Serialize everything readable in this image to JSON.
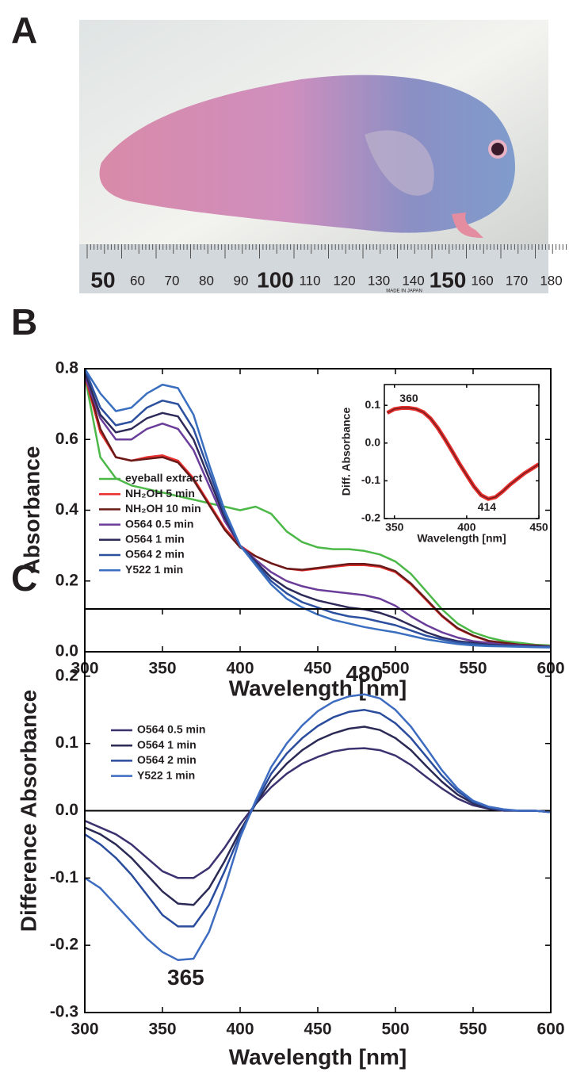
{
  "panel_labels": [
    "A",
    "B",
    "C"
  ],
  "photo": {
    "ruler_labels": [
      "50",
      "60",
      "70",
      "80",
      "90",
      "100",
      "110",
      "120",
      "130",
      "140",
      "150",
      "160",
      "170",
      "180"
    ],
    "ruler_note": "MADE IN JAPAN"
  },
  "chart_data": [
    {
      "type": "line",
      "x_label": "Wavelength [nm]",
      "y_label": "Absorbance",
      "x": [
        300,
        310,
        320,
        330,
        340,
        350,
        360,
        370,
        380,
        390,
        400,
        410,
        420,
        430,
        440,
        450,
        460,
        470,
        480,
        490,
        500,
        510,
        520,
        530,
        540,
        550,
        560,
        570,
        580,
        590,
        600
      ],
      "xlim": [
        300,
        600
      ],
      "xticks": [
        300,
        350,
        400,
        450,
        500,
        550,
        600
      ],
      "ylim": [
        0,
        0.8
      ],
      "yticks": [
        {
          "value": 0,
          "label": "0.0"
        },
        0.2,
        0.4,
        0.6,
        0.8
      ],
      "legend": "lower left",
      "series": [
        {
          "name": "eyeball extract",
          "color": "#4cb848",
          "values": [
            0.78,
            0.55,
            0.49,
            0.47,
            0.46,
            0.45,
            0.44,
            0.43,
            0.42,
            0.41,
            0.4,
            0.41,
            0.39,
            0.34,
            0.31,
            0.295,
            0.29,
            0.29,
            0.285,
            0.275,
            0.255,
            0.22,
            0.17,
            0.12,
            0.08,
            0.055,
            0.04,
            0.03,
            0.025,
            0.02,
            0.018
          ]
        },
        {
          "name": "NH₂OH 5 min",
          "color": "#e8312f",
          "values": [
            0.78,
            0.62,
            0.55,
            0.54,
            0.55,
            0.555,
            0.54,
            0.49,
            0.42,
            0.35,
            0.3,
            0.27,
            0.25,
            0.235,
            0.23,
            0.235,
            0.24,
            0.245,
            0.245,
            0.24,
            0.225,
            0.19,
            0.145,
            0.1,
            0.065,
            0.045,
            0.03,
            0.025,
            0.02,
            0.018,
            0.015
          ]
        },
        {
          "name": "NH₂OH 10 min",
          "color": "#6b1a1a",
          "values": [
            0.79,
            0.63,
            0.55,
            0.54,
            0.545,
            0.55,
            0.535,
            0.485,
            0.415,
            0.345,
            0.295,
            0.27,
            0.25,
            0.235,
            0.232,
            0.237,
            0.243,
            0.248,
            0.248,
            0.243,
            0.228,
            0.193,
            0.148,
            0.102,
            0.067,
            0.046,
            0.031,
            0.025,
            0.02,
            0.018,
            0.015
          ]
        },
        {
          "name": "O564 0.5 min",
          "color": "#6a3d9a",
          "values": [
            0.78,
            0.66,
            0.6,
            0.6,
            0.63,
            0.645,
            0.63,
            0.57,
            0.47,
            0.37,
            0.3,
            0.26,
            0.225,
            0.2,
            0.185,
            0.175,
            0.17,
            0.165,
            0.16,
            0.15,
            0.13,
            0.1,
            0.075,
            0.055,
            0.04,
            0.03,
            0.025,
            0.02,
            0.018,
            0.016,
            0.015
          ]
        },
        {
          "name": "O564 1 min",
          "color": "#2e2a5a",
          "values": [
            0.79,
            0.67,
            0.62,
            0.63,
            0.66,
            0.675,
            0.665,
            0.6,
            0.49,
            0.38,
            0.3,
            0.255,
            0.21,
            0.18,
            0.16,
            0.145,
            0.135,
            0.125,
            0.12,
            0.11,
            0.095,
            0.075,
            0.055,
            0.04,
            0.03,
            0.025,
            0.02,
            0.018,
            0.016,
            0.015,
            0.014
          ]
        },
        {
          "name": "O564 2 min",
          "color": "#2c4f9e",
          "values": [
            0.8,
            0.69,
            0.64,
            0.65,
            0.69,
            0.71,
            0.7,
            0.63,
            0.51,
            0.39,
            0.3,
            0.25,
            0.2,
            0.165,
            0.14,
            0.125,
            0.11,
            0.1,
            0.095,
            0.085,
            0.075,
            0.06,
            0.045,
            0.035,
            0.027,
            0.022,
            0.018,
            0.016,
            0.015,
            0.014,
            0.013
          ]
        },
        {
          "name": "Y522 1 min",
          "color": "#3a6fc0",
          "values": [
            0.8,
            0.73,
            0.68,
            0.69,
            0.73,
            0.755,
            0.745,
            0.67,
            0.53,
            0.4,
            0.3,
            0.245,
            0.19,
            0.15,
            0.125,
            0.105,
            0.09,
            0.08,
            0.07,
            0.062,
            0.055,
            0.045,
            0.035,
            0.028,
            0.022,
            0.018,
            0.016,
            0.015,
            0.014,
            0.013,
            0.012
          ]
        }
      ]
    },
    {
      "type": "line",
      "x_label": "Wavelength [nm]",
      "y_label": "Diff. Absorbance",
      "x": [
        345,
        350,
        355,
        360,
        365,
        370,
        375,
        380,
        385,
        390,
        395,
        400,
        405,
        410,
        415,
        420,
        425,
        430,
        435,
        440,
        445,
        450
      ],
      "xlim": [
        343,
        450
      ],
      "xticks": [
        350,
        400,
        450
      ],
      "ylim": [
        -0.2,
        0.155
      ],
      "yticks": [
        0.1,
        {
          "value": 0,
          "label": "0.0"
        },
        -0.1,
        -0.2
      ],
      "series": [
        {
          "color": "#7a1c1c",
          "halo_color": "#e8312f",
          "values": [
            0.08,
            0.09,
            0.093,
            0.093,
            0.09,
            0.082,
            0.065,
            0.04,
            0.01,
            -0.022,
            -0.055,
            -0.085,
            -0.115,
            -0.138,
            -0.148,
            -0.143,
            -0.128,
            -0.11,
            -0.095,
            -0.08,
            -0.068,
            -0.056
          ]
        }
      ],
      "peak_labels": [
        360,
        414
      ]
    },
    {
      "type": "line",
      "x_label": "Wavelength [nm]",
      "y_label": "Difference Absorbance",
      "x": [
        300,
        310,
        320,
        330,
        340,
        350,
        360,
        370,
        380,
        390,
        400,
        410,
        420,
        430,
        440,
        450,
        460,
        470,
        480,
        490,
        500,
        510,
        520,
        530,
        540,
        550,
        560,
        570,
        580,
        590,
        600
      ],
      "xlim": [
        300,
        600
      ],
      "xticks": [
        300,
        350,
        400,
        450,
        500,
        550,
        600
      ],
      "ylim": [
        -0.3,
        0.3
      ],
      "yticks": [
        0.2,
        0.1,
        {
          "value": 0,
          "label": "0.0"
        },
        -0.1,
        -0.2,
        -0.3
      ],
      "zero_line": true,
      "legend": "upper left",
      "series": [
        {
          "name": "O564 0.5 min",
          "color": "#3b3270",
          "values": [
            -0.015,
            -0.025,
            -0.035,
            -0.05,
            -0.07,
            -0.09,
            -0.1,
            -0.1,
            -0.085,
            -0.055,
            -0.02,
            0.01,
            0.035,
            0.055,
            0.07,
            0.08,
            0.088,
            0.092,
            0.093,
            0.09,
            0.082,
            0.068,
            0.05,
            0.033,
            0.018,
            0.008,
            0.003,
            0,
            0,
            0,
            -0.002
          ]
        },
        {
          "name": "O564 1 min",
          "color": "#2b2a55",
          "values": [
            -0.025,
            -0.035,
            -0.05,
            -0.07,
            -0.095,
            -0.12,
            -0.138,
            -0.14,
            -0.115,
            -0.075,
            -0.03,
            0.01,
            0.045,
            0.07,
            0.09,
            0.105,
            0.115,
            0.122,
            0.125,
            0.12,
            0.108,
            0.09,
            0.066,
            0.043,
            0.024,
            0.011,
            0.004,
            0.001,
            0,
            0,
            -0.002
          ]
        },
        {
          "name": "O564 2 min",
          "color": "#2a4c9c",
          "values": [
            -0.035,
            -0.05,
            -0.07,
            -0.095,
            -0.125,
            -0.155,
            -0.172,
            -0.172,
            -0.14,
            -0.09,
            -0.035,
            0.012,
            0.055,
            0.085,
            0.108,
            0.126,
            0.139,
            0.147,
            0.15,
            0.145,
            0.13,
            0.108,
            0.08,
            0.052,
            0.029,
            0.013,
            0.005,
            0.001,
            0,
            0,
            -0.002
          ]
        },
        {
          "name": "Y522 1 min",
          "color": "#3d6cc0",
          "values": [
            -0.1,
            -0.115,
            -0.14,
            -0.165,
            -0.19,
            -0.21,
            -0.222,
            -0.22,
            -0.18,
            -0.115,
            -0.04,
            0.015,
            0.065,
            0.1,
            0.127,
            0.148,
            0.162,
            0.17,
            0.173,
            0.167,
            0.15,
            0.125,
            0.093,
            0.06,
            0.033,
            0.015,
            0.006,
            0.002,
            0,
            0,
            -0.002
          ]
        }
      ],
      "peak_labels": [
        480,
        365
      ]
    }
  ]
}
